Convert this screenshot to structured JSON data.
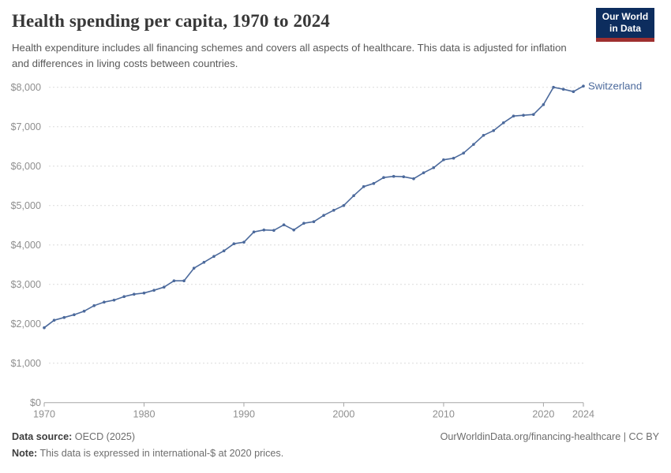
{
  "header": {
    "title": "Health spending per capita, 1970 to 2024",
    "subtitle": "Health expenditure includes all financing schemes and covers all aspects of healthcare. This data is adjusted for inflation and differences in living costs between countries.",
    "logo_line1": "Our World",
    "logo_line2": "in Data",
    "logo_bg_color": "#0d2d5e",
    "logo_accent_color": "#9e2f2f"
  },
  "chart_data": {
    "type": "line",
    "title": "Health spending per capita, 1970 to 2024",
    "xlabel": "",
    "ylabel": "",
    "xlim": [
      1970,
      2024
    ],
    "ylim": [
      0,
      8000
    ],
    "grid": "horizontal-dashed",
    "legend": "end-of-line-label",
    "x": [
      1970,
      1971,
      1972,
      1973,
      1974,
      1975,
      1976,
      1977,
      1978,
      1979,
      1980,
      1981,
      1982,
      1983,
      1984,
      1985,
      1986,
      1987,
      1988,
      1989,
      1990,
      1991,
      1992,
      1993,
      1994,
      1995,
      1996,
      1997,
      1998,
      1999,
      2000,
      2001,
      2002,
      2003,
      2004,
      2005,
      2006,
      2007,
      2008,
      2009,
      2010,
      2011,
      2012,
      2013,
      2014,
      2015,
      2016,
      2017,
      2018,
      2019,
      2020,
      2021,
      2022,
      2023,
      2024
    ],
    "series": [
      {
        "name": "Switzerland",
        "color": "#4C6A9C",
        "values": [
          1900,
          2090,
          2160,
          2230,
          2320,
          2460,
          2550,
          2600,
          2690,
          2750,
          2780,
          2850,
          2930,
          3090,
          3090,
          3410,
          3560,
          3710,
          3850,
          4030,
          4070,
          4330,
          4380,
          4370,
          4510,
          4380,
          4550,
          4590,
          4750,
          4880,
          5000,
          5250,
          5480,
          5560,
          5710,
          5740,
          5730,
          5680,
          5830,
          5960,
          6160,
          6200,
          6330,
          6550,
          6780,
          6900,
          7100,
          7270,
          7290,
          7310,
          7560,
          8000,
          7950,
          7890,
          8030
        ]
      }
    ],
    "yticks": [
      {
        "value": 0,
        "label": "$0"
      },
      {
        "value": 1000,
        "label": "$1,000"
      },
      {
        "value": 2000,
        "label": "$2,000"
      },
      {
        "value": 3000,
        "label": "$3,000"
      },
      {
        "value": 4000,
        "label": "$4,000"
      },
      {
        "value": 5000,
        "label": "$5,000"
      },
      {
        "value": 6000,
        "label": "$6,000"
      },
      {
        "value": 7000,
        "label": "$7,000"
      },
      {
        "value": 8000,
        "label": "$8,000"
      }
    ],
    "xticks": [
      1970,
      1980,
      1990,
      2000,
      2010,
      2020,
      2024
    ],
    "colors": {
      "gridline": "#dcdcdc",
      "axis": "#a5a5a5",
      "tick_label": "#8f8f8f"
    }
  },
  "footer": {
    "data_source_label": "Data source:",
    "data_source_value": "OECD (2025)",
    "note_label": "Note:",
    "note_value": "This data is expressed in international-$ at 2020 prices.",
    "credit": "OurWorldinData.org/financing-healthcare | CC BY"
  }
}
